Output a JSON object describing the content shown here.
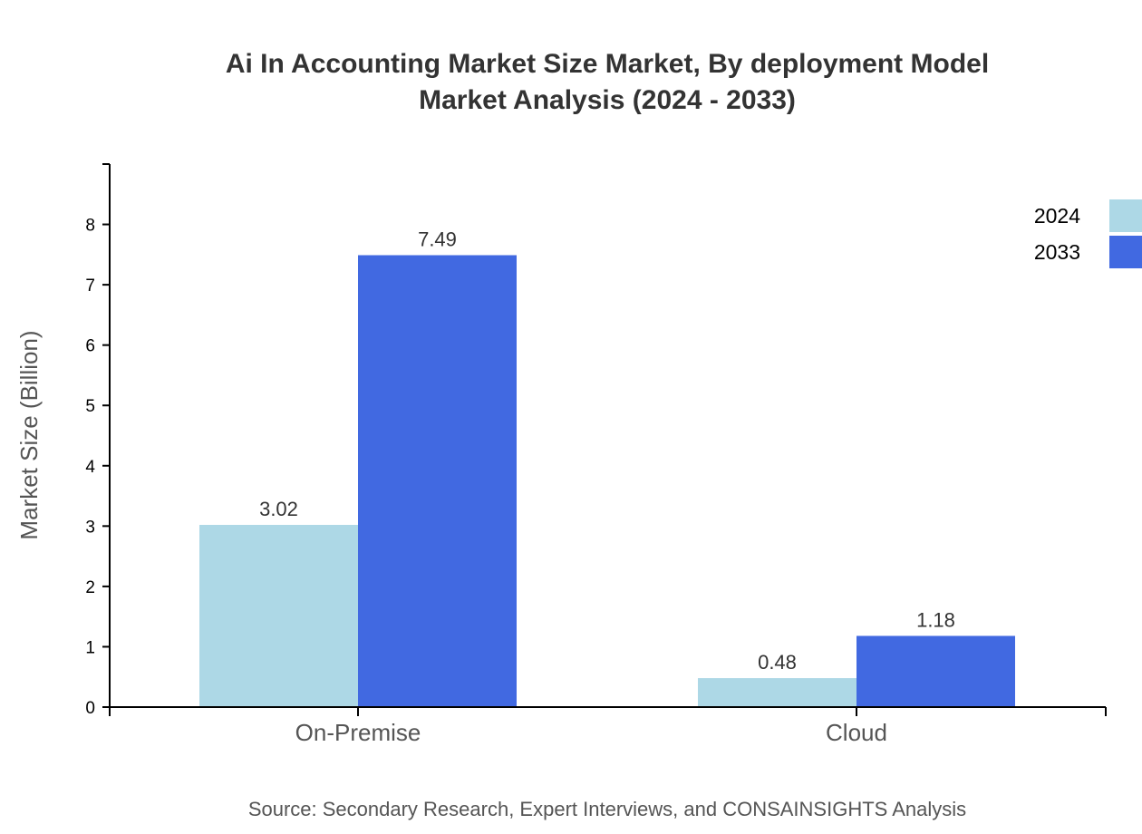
{
  "chart_data": {
    "type": "bar",
    "title_lines": [
      "Ai In Accounting Market Size Market, By deployment Model",
      "Market Analysis (2024 - 2033)"
    ],
    "ylabel": "Market Size (Billion)",
    "xlabel": "",
    "ylim": [
      0,
      9
    ],
    "yticks": [
      0,
      1,
      2,
      3,
      4,
      5,
      6,
      7,
      8
    ],
    "categories": [
      "On-Premise",
      "Cloud"
    ],
    "series": [
      {
        "name": "2024",
        "color": "#add8e6",
        "values": [
          3.02,
          0.48
        ]
      },
      {
        "name": "2033",
        "color": "#4169e1",
        "values": [
          7.49,
          1.18
        ]
      }
    ],
    "legend_placement": "top-right",
    "grid": false,
    "source": "Source: Secondary Research, Expert Interviews, and CONSAINSIGHTS Analysis"
  }
}
